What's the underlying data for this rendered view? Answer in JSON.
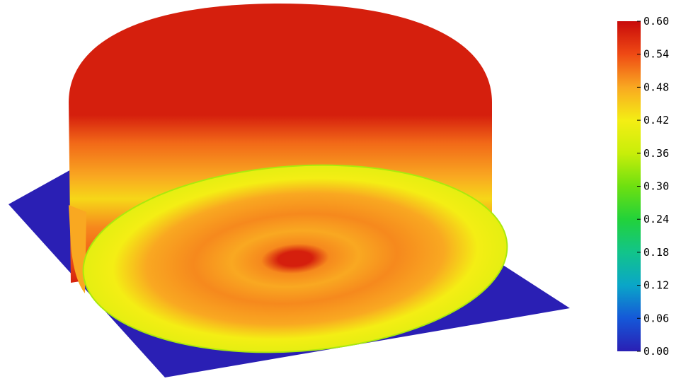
{
  "chart_data": {
    "type": "heatmap",
    "colorbar": {
      "min": 0.0,
      "max": 0.6,
      "tick_labels": [
        "0.60",
        "0.54",
        "0.48",
        "0.42",
        "0.36",
        "0.30",
        "0.24",
        "0.18",
        "0.12",
        "0.06",
        "0.00"
      ],
      "colormap": "rainbow (blue-green-yellow-red)",
      "stops": [
        {
          "value": 0.0,
          "color": "#2a1fb4"
        },
        {
          "value": 0.06,
          "color": "#1558d8"
        },
        {
          "value": 0.12,
          "color": "#0aa6c8"
        },
        {
          "value": 0.18,
          "color": "#12c48a"
        },
        {
          "value": 0.24,
          "color": "#22d23a"
        },
        {
          "value": 0.3,
          "color": "#6ee010"
        },
        {
          "value": 0.36,
          "color": "#c8ee0a"
        },
        {
          "value": 0.42,
          "color": "#f4ee14"
        },
        {
          "value": 0.48,
          "color": "#f9a821"
        },
        {
          "value": 0.54,
          "color": "#ef4a14"
        },
        {
          "value": 0.6,
          "color": "#c80a0a"
        }
      ]
    },
    "surfaces": {
      "base_plate_value": 0.0,
      "cylinder_wall_top_value": 0.58,
      "cylinder_wall_band_values": [
        0.52,
        0.48,
        0.44,
        0.5
      ],
      "disk_edge_value": 0.4,
      "disk_ring_value": 0.5,
      "disk_center_value": 0.58
    }
  }
}
